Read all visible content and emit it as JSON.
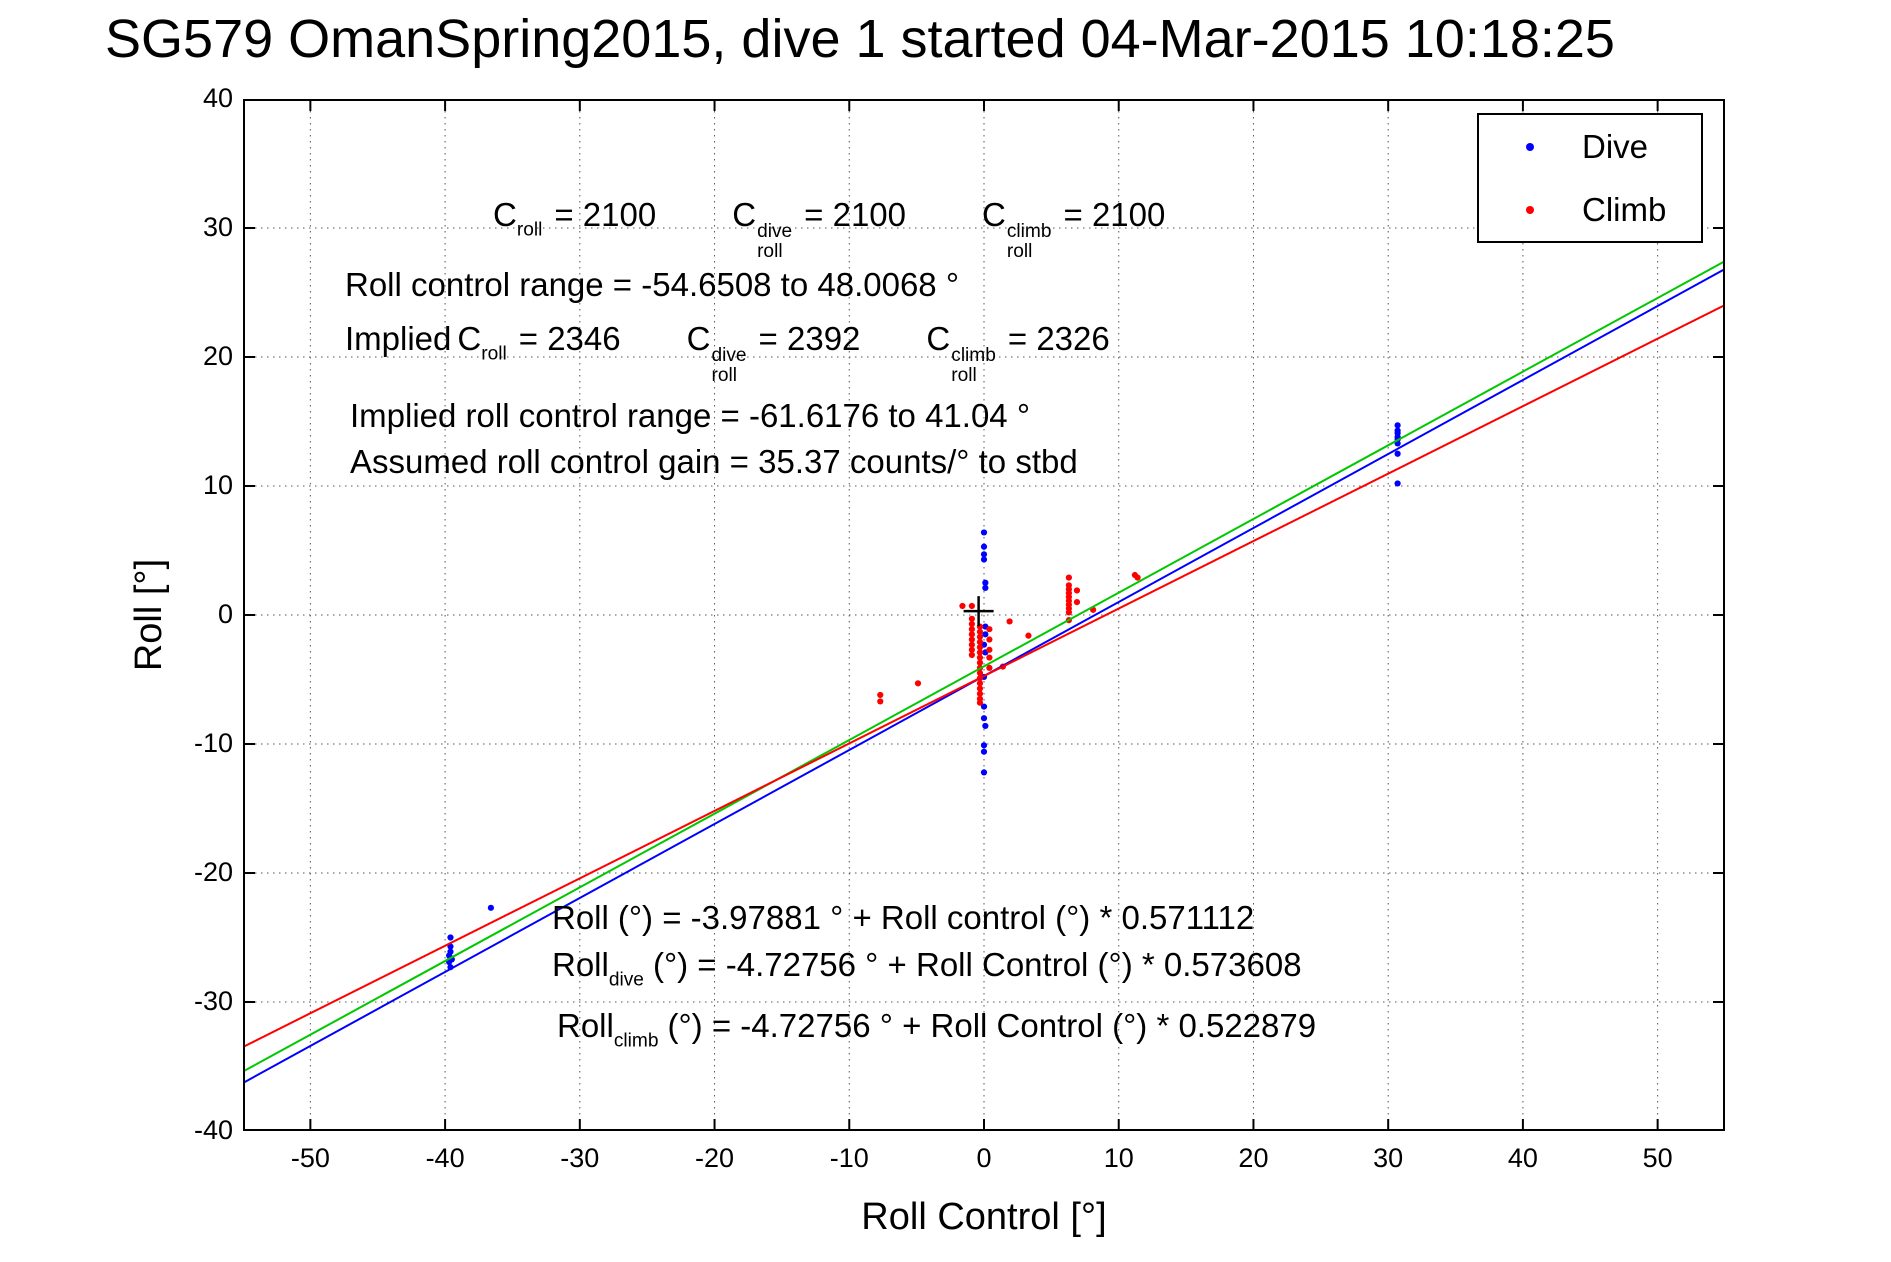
{
  "title": "SG579 OmanSpring2015, dive 1 started 04-Mar-2015 10:18:25",
  "annotations": {
    "c_top": [
      {
        "prefix": "",
        "base": "C",
        "sup": "",
        "sub": "roll",
        "eq": "= 2100"
      },
      {
        "prefix": "",
        "base": "C",
        "sup": "dive",
        "sub": "roll",
        "eq": "= 2100"
      },
      {
        "prefix": "",
        "base": "C",
        "sup": "climb",
        "sub": "roll",
        "eq": "= 2100"
      }
    ],
    "roll_control_range": "Roll control range = -54.6508 to 48.0068 °",
    "c_implied": [
      {
        "prefix": "Implied",
        "base": "C",
        "sup": "",
        "sub": "roll",
        "eq": "= 2346"
      },
      {
        "prefix": "",
        "base": "C",
        "sup": "dive",
        "sub": "roll",
        "eq": "= 2392"
      },
      {
        "prefix": "",
        "base": "C",
        "sup": "climb",
        "sub": "roll",
        "eq": "= 2326"
      }
    ],
    "implied_range": "Implied roll control range = -61.6176 to 41.04 °",
    "assumed_gain": "Assumed roll control gain = 35.37 counts/° to stbd",
    "equations": [
      {
        "base": "Roll",
        "sub": "",
        "rest": "(°) = -3.97881 ° + Roll control (°) * 0.571112"
      },
      {
        "base": "Roll",
        "sub": "dive",
        "rest": "(°) = -4.72756 ° + Roll Control (°) * 0.573608"
      },
      {
        "base": "Roll",
        "sub": "climb",
        "rest": "(°) = -4.72756 ° + Roll Control (°) * 0.522879"
      }
    ]
  },
  "legend": {
    "position": "top-right",
    "items": [
      {
        "label": "Dive",
        "color": "#0000ff"
      },
      {
        "label": "Climb",
        "color": "#ff0000"
      }
    ]
  },
  "chart_data": {
    "type": "scatter",
    "title": "SG579 OmanSpring2015, dive 1 started 04-Mar-2015 10:18:25",
    "xlabel": "Roll Control [°]",
    "ylabel": "Roll [°]",
    "xlim": [
      -55,
      55
    ],
    "ylim": [
      -40,
      40
    ],
    "xticks": [
      -50,
      -40,
      -30,
      -20,
      -10,
      0,
      10,
      20,
      30,
      40,
      50
    ],
    "yticks": [
      -40,
      -30,
      -20,
      -10,
      0,
      10,
      20,
      30,
      40
    ],
    "grid": true,
    "origin_marker": {
      "x": -0.4,
      "y": 0.3,
      "symbol": "+",
      "color": "#000000"
    },
    "series": [
      {
        "name": "Dive",
        "type": "scatter",
        "color": "#0000ff",
        "marker": "dot",
        "points": [
          [
            0.0,
            6.4
          ],
          [
            0.0,
            5.3
          ],
          [
            0.0,
            4.7
          ],
          [
            0.0,
            4.3
          ],
          [
            0.1,
            2.5
          ],
          [
            0.1,
            2.1
          ],
          [
            0.1,
            -0.9
          ],
          [
            0.1,
            -1.5
          ],
          [
            0.0,
            -2.3
          ],
          [
            0.1,
            -2.9
          ],
          [
            0.0,
            -4.8
          ],
          [
            0.0,
            -7.1
          ],
          [
            0.0,
            -8.0
          ],
          [
            0.1,
            -8.6
          ],
          [
            0.0,
            -10.1
          ],
          [
            0.0,
            -10.6
          ],
          [
            0.0,
            -12.2
          ],
          [
            30.7,
            14.7
          ],
          [
            30.7,
            14.3
          ],
          [
            30.7,
            14.1
          ],
          [
            30.7,
            13.8
          ],
          [
            30.7,
            13.6
          ],
          [
            30.7,
            13.3
          ],
          [
            30.7,
            12.5
          ],
          [
            30.7,
            10.2
          ],
          [
            -39.6,
            -25.0
          ],
          [
            -39.6,
            -25.7
          ],
          [
            -39.6,
            -26.1
          ],
          [
            -39.6,
            -26.6
          ],
          [
            -39.7,
            -26.9
          ],
          [
            -39.6,
            -27.3
          ],
          [
            -39.5,
            -26.7
          ],
          [
            -39.7,
            -26.4
          ],
          [
            -36.6,
            -22.7
          ]
        ]
      },
      {
        "name": "Climb",
        "type": "scatter",
        "color": "#ff0000",
        "marker": "dot",
        "points": [
          [
            -1.6,
            0.7
          ],
          [
            -0.9,
            0.7
          ],
          [
            -0.9,
            -0.3
          ],
          [
            -0.9,
            -0.7
          ],
          [
            -0.9,
            -1.1
          ],
          [
            -0.9,
            -1.5
          ],
          [
            -0.9,
            -1.9
          ],
          [
            -0.9,
            -2.3
          ],
          [
            -0.9,
            -2.7
          ],
          [
            -0.9,
            -3.1
          ],
          [
            -0.3,
            -0.9
          ],
          [
            -0.3,
            -1.3
          ],
          [
            -0.3,
            -1.7
          ],
          [
            -0.3,
            -2.1
          ],
          [
            -0.3,
            -2.5
          ],
          [
            -0.3,
            -2.9
          ],
          [
            -0.3,
            -3.3
          ],
          [
            -0.3,
            -3.7
          ],
          [
            -0.3,
            -4.1
          ],
          [
            -0.3,
            -4.5
          ],
          [
            -0.3,
            -4.9
          ],
          [
            -0.3,
            -5.3
          ],
          [
            -0.3,
            -5.7
          ],
          [
            -0.3,
            -6.1
          ],
          [
            -0.3,
            -6.5
          ],
          [
            -0.3,
            -6.8
          ],
          [
            0.4,
            -1.1
          ],
          [
            0.4,
            -1.9
          ],
          [
            0.4,
            -2.7
          ],
          [
            0.4,
            -3.3
          ],
          [
            0.4,
            -4.1
          ],
          [
            -7.7,
            -6.2
          ],
          [
            -7.7,
            -6.7
          ],
          [
            -4.9,
            -5.3
          ],
          [
            1.9,
            -0.5
          ],
          [
            3.3,
            -1.6
          ],
          [
            1.4,
            -4.0
          ],
          [
            6.3,
            2.9
          ],
          [
            6.3,
            2.3
          ],
          [
            6.3,
            2.0
          ],
          [
            6.3,
            1.7
          ],
          [
            6.3,
            1.4
          ],
          [
            6.3,
            1.1
          ],
          [
            6.3,
            0.8
          ],
          [
            6.3,
            0.5
          ],
          [
            6.3,
            0.2
          ],
          [
            6.3,
            -0.4
          ],
          [
            6.9,
            1.9
          ],
          [
            6.9,
            1.0
          ],
          [
            8.1,
            0.4
          ],
          [
            11.2,
            3.1
          ],
          [
            11.4,
            2.9
          ]
        ]
      },
      {
        "name": "fit_overall",
        "type": "line",
        "color": "#00c800",
        "intercept": -3.97881,
        "slope": 0.571112,
        "equation": "Roll (°) = -3.97881 ° + Roll control (°) * 0.571112"
      },
      {
        "name": "fit_dive",
        "type": "line",
        "color": "#0000ff",
        "intercept": -4.72756,
        "slope": 0.573608,
        "equation": "Roll_dive (°) = -4.72756 ° + Roll Control (°) * 0.573608"
      },
      {
        "name": "fit_climb",
        "type": "line",
        "color": "#ff0000",
        "intercept": -4.72756,
        "slope": 0.522879,
        "equation": "Roll_climb (°) = -4.72756 ° + Roll Control (°) * 0.522879"
      }
    ]
  }
}
